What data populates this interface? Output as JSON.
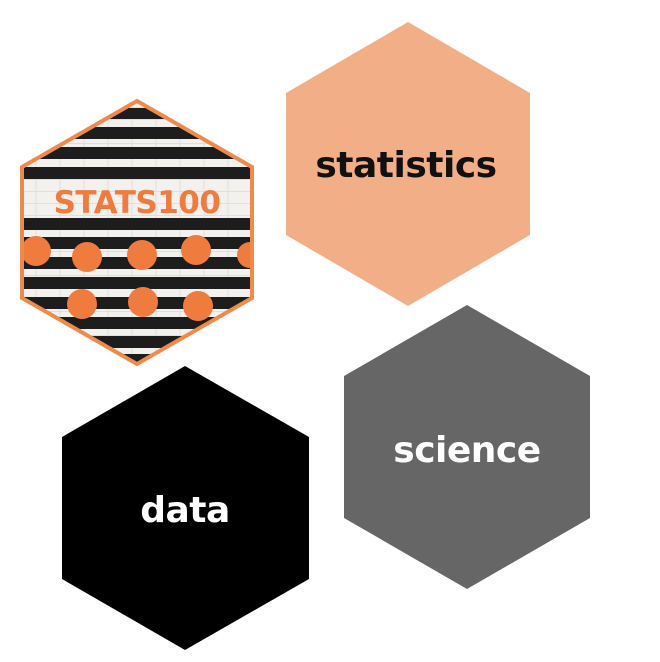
{
  "logo": {
    "text": "STATS100",
    "colors": {
      "orange": "#f07b3f",
      "stripe": "#1d1d1d",
      "wall": "#f2f1ee",
      "border": "#ef8a4a"
    }
  },
  "hexagons": [
    {
      "label": "statistics",
      "fill": "#f2ae87",
      "text_color": "#111111"
    },
    {
      "label": "science",
      "fill": "#666666",
      "text_color": "#ffffff"
    },
    {
      "label": "data",
      "fill": "#000000",
      "text_color": "#ffffff"
    }
  ]
}
